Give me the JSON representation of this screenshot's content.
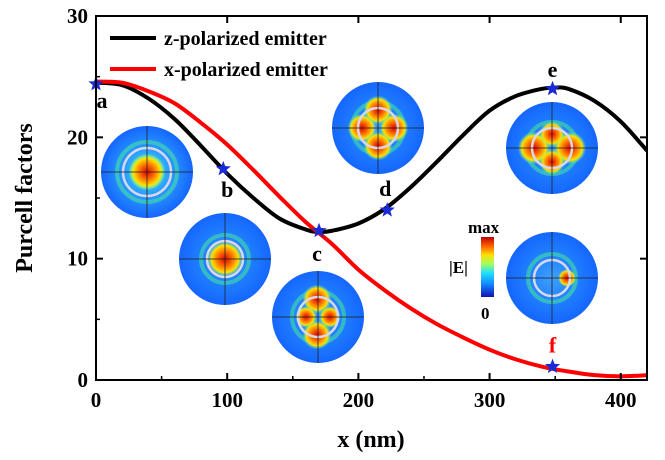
{
  "chart_data": {
    "type": "line",
    "title": "",
    "xlabel": "x (nm)",
    "ylabel": "Purcell factors",
    "xlim": [
      0,
      420
    ],
    "ylim": [
      0,
      30
    ],
    "xticks": [
      "0",
      "100",
      "200",
      "300",
      "400"
    ],
    "yticks": [
      "0",
      "10",
      "20",
      "30"
    ],
    "xtick_values": [
      0,
      100,
      200,
      300,
      400
    ],
    "ytick_values": [
      0,
      10,
      20,
      30
    ],
    "legend_position": "top-left",
    "series": [
      {
        "name": "z-polarized emitter",
        "color": "#000000",
        "x": [
          0,
          20,
          40,
          60,
          80,
          100,
          120,
          140,
          160,
          170,
          180,
          200,
          220,
          240,
          260,
          280,
          300,
          320,
          340,
          350,
          360,
          380,
          400,
          420
        ],
        "y": [
          24.5,
          24.3,
          23.2,
          21.5,
          19.3,
          17.0,
          15.0,
          13.3,
          12.4,
          12.2,
          12.3,
          12.9,
          14.1,
          15.9,
          18.0,
          20.2,
          22.2,
          23.4,
          24.0,
          24.1,
          24.0,
          23.0,
          21.3,
          18.9
        ]
      },
      {
        "name": "x-polarized emitter",
        "color": "#ff0000",
        "x": [
          0,
          20,
          40,
          60,
          80,
          100,
          120,
          140,
          160,
          180,
          200,
          220,
          240,
          260,
          280,
          300,
          320,
          340,
          360,
          380,
          400,
          420
        ],
        "y": [
          24.6,
          24.5,
          23.8,
          22.8,
          21.2,
          19.4,
          17.3,
          15.1,
          13.0,
          11.2,
          9.1,
          7.4,
          5.9,
          4.6,
          3.5,
          2.5,
          1.7,
          1.1,
          0.7,
          0.4,
          0.3,
          0.4
        ]
      }
    ],
    "markers": [
      {
        "label": "a",
        "x": 0,
        "y": 24.4,
        "color": "#000000"
      },
      {
        "label": "b",
        "x": 97,
        "y": 17.4,
        "color": "#000000"
      },
      {
        "label": "c",
        "x": 170,
        "y": 12.3,
        "color": "#000000"
      },
      {
        "label": "d",
        "x": 222,
        "y": 14.0,
        "color": "#000000"
      },
      {
        "label": "e",
        "x": 348,
        "y": 24.0,
        "color": "#000000"
      },
      {
        "label": "f",
        "x": 348,
        "y": 1.1,
        "color": "#ff0000"
      }
    ],
    "marker_color": "#1a2bd6",
    "colorbar": {
      "label": "|E|",
      "max_label": "max",
      "min_label": "0"
    }
  }
}
